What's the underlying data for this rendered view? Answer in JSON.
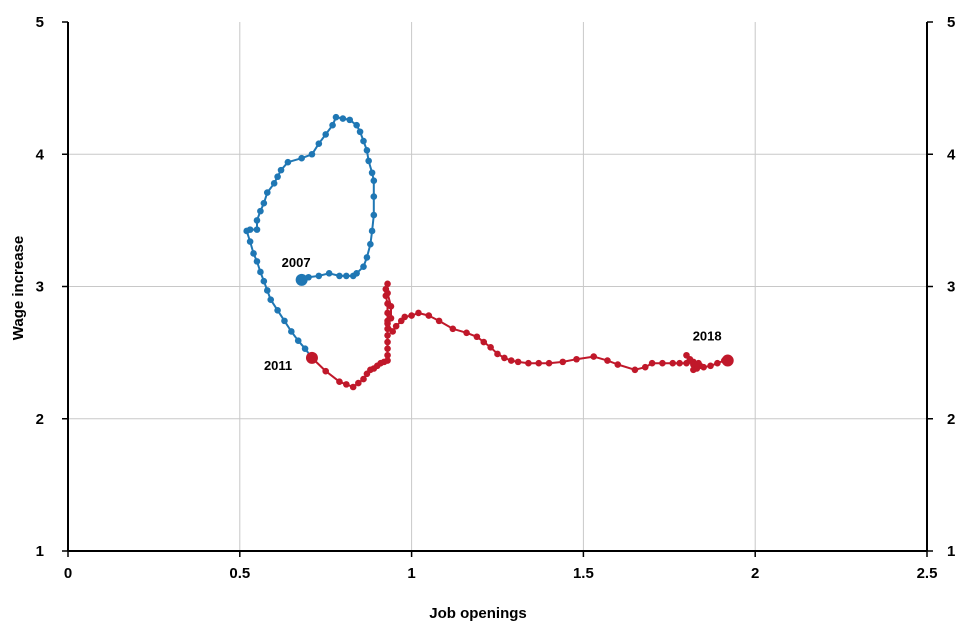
{
  "chart_data": {
    "type": "line",
    "xlabel": "Job openings",
    "ylabel": "Wage increase",
    "xlim": [
      0,
      2.5
    ],
    "ylim": [
      1,
      5
    ],
    "x_ticks": [
      "0",
      "0.5",
      "1",
      "1.5",
      "2",
      "2.5"
    ],
    "y_ticks": [
      "1",
      "2",
      "3",
      "4",
      "5"
    ],
    "y_ticks_right": [
      "1",
      "2",
      "3",
      "4",
      "5"
    ],
    "grid": true,
    "legend": "none",
    "series": [
      {
        "color": "#1f77b4",
        "points": [
          [
            0.68,
            3.05
          ],
          [
            0.7,
            3.07
          ],
          [
            0.73,
            3.08
          ],
          [
            0.76,
            3.1
          ],
          [
            0.79,
            3.08
          ],
          [
            0.81,
            3.08
          ],
          [
            0.83,
            3.08
          ],
          [
            0.84,
            3.1
          ],
          [
            0.86,
            3.15
          ],
          [
            0.87,
            3.22
          ],
          [
            0.88,
            3.32
          ],
          [
            0.885,
            3.42
          ],
          [
            0.89,
            3.54
          ],
          [
            0.89,
            3.68
          ],
          [
            0.89,
            3.8
          ],
          [
            0.885,
            3.86
          ],
          [
            0.875,
            3.95
          ],
          [
            0.87,
            4.03
          ],
          [
            0.86,
            4.1
          ],
          [
            0.85,
            4.17
          ],
          [
            0.84,
            4.22
          ],
          [
            0.82,
            4.26
          ],
          [
            0.8,
            4.27
          ],
          [
            0.78,
            4.28
          ],
          [
            0.77,
            4.22
          ],
          [
            0.75,
            4.15
          ],
          [
            0.73,
            4.08
          ],
          [
            0.71,
            4.0
          ],
          [
            0.68,
            3.97
          ],
          [
            0.64,
            3.94
          ],
          [
            0.62,
            3.88
          ],
          [
            0.61,
            3.83
          ],
          [
            0.6,
            3.78
          ],
          [
            0.58,
            3.71
          ],
          [
            0.57,
            3.63
          ],
          [
            0.56,
            3.57
          ],
          [
            0.55,
            3.5
          ],
          [
            0.55,
            3.43
          ],
          [
            0.53,
            3.43
          ],
          [
            0.52,
            3.42
          ],
          [
            0.53,
            3.34
          ],
          [
            0.54,
            3.25
          ],
          [
            0.55,
            3.19
          ],
          [
            0.56,
            3.11
          ],
          [
            0.57,
            3.04
          ],
          [
            0.58,
            2.97
          ],
          [
            0.59,
            2.9
          ],
          [
            0.61,
            2.82
          ],
          [
            0.63,
            2.74
          ],
          [
            0.65,
            2.66
          ],
          [
            0.67,
            2.59
          ],
          [
            0.69,
            2.53
          ],
          [
            0.71,
            2.46
          ]
        ]
      },
      {
        "color": "#c0182a",
        "points": [
          [
            0.71,
            2.46
          ],
          [
            0.75,
            2.36
          ],
          [
            0.79,
            2.28
          ],
          [
            0.81,
            2.26
          ],
          [
            0.83,
            2.24
          ],
          [
            0.845,
            2.27
          ],
          [
            0.86,
            2.3
          ],
          [
            0.87,
            2.34
          ],
          [
            0.88,
            2.37
          ],
          [
            0.89,
            2.38
          ],
          [
            0.9,
            2.4
          ],
          [
            0.91,
            2.42
          ],
          [
            0.92,
            2.43
          ],
          [
            0.93,
            2.44
          ],
          [
            0.93,
            2.48
          ],
          [
            0.93,
            2.53
          ],
          [
            0.93,
            2.58
          ],
          [
            0.93,
            2.63
          ],
          [
            0.93,
            2.68
          ],
          [
            0.93,
            2.74
          ],
          [
            0.93,
            2.8
          ],
          [
            0.93,
            2.87
          ],
          [
            0.925,
            2.93
          ],
          [
            0.925,
            2.98
          ],
          [
            0.93,
            3.02
          ],
          [
            0.93,
            2.95
          ],
          [
            0.94,
            2.85
          ],
          [
            0.94,
            2.76
          ],
          [
            0.93,
            2.72
          ],
          [
            0.945,
            2.66
          ],
          [
            0.955,
            2.7
          ],
          [
            0.97,
            2.74
          ],
          [
            0.98,
            2.77
          ],
          [
            1.0,
            2.78
          ],
          [
            1.02,
            2.8
          ],
          [
            1.05,
            2.78
          ],
          [
            1.08,
            2.74
          ],
          [
            1.12,
            2.68
          ],
          [
            1.16,
            2.65
          ],
          [
            1.19,
            2.62
          ],
          [
            1.21,
            2.58
          ],
          [
            1.23,
            2.54
          ],
          [
            1.25,
            2.49
          ],
          [
            1.27,
            2.46
          ],
          [
            1.29,
            2.44
          ],
          [
            1.31,
            2.43
          ],
          [
            1.34,
            2.42
          ],
          [
            1.37,
            2.42
          ],
          [
            1.4,
            2.42
          ],
          [
            1.44,
            2.43
          ],
          [
            1.48,
            2.45
          ],
          [
            1.53,
            2.47
          ],
          [
            1.57,
            2.44
          ],
          [
            1.6,
            2.41
          ],
          [
            1.65,
            2.37
          ],
          [
            1.68,
            2.39
          ],
          [
            1.7,
            2.42
          ],
          [
            1.73,
            2.42
          ],
          [
            1.76,
            2.42
          ],
          [
            1.78,
            2.42
          ],
          [
            1.8,
            2.42
          ],
          [
            1.82,
            2.43
          ],
          [
            1.835,
            2.42
          ],
          [
            1.84,
            2.4
          ],
          [
            1.83,
            2.38
          ],
          [
            1.82,
            2.37
          ],
          [
            1.82,
            2.41
          ],
          [
            1.81,
            2.44
          ],
          [
            1.8,
            2.48
          ],
          [
            1.81,
            2.45
          ],
          [
            1.83,
            2.41
          ],
          [
            1.85,
            2.39
          ],
          [
            1.87,
            2.4
          ],
          [
            1.89,
            2.42
          ],
          [
            1.91,
            2.44
          ],
          [
            1.92,
            2.44
          ]
        ]
      }
    ],
    "highlights": [
      {
        "x": 0.68,
        "y": 3.05,
        "color": "#1f77b4"
      },
      {
        "x": 0.71,
        "y": 2.46,
        "color": "#c0182a"
      },
      {
        "x": 1.92,
        "y": 2.44,
        "color": "#c0182a"
      }
    ],
    "annotations": [
      {
        "text": "2007",
        "x": 0.68,
        "y": 3.05
      },
      {
        "text": "2011",
        "x": 0.71,
        "y": 2.46
      },
      {
        "text": "2018",
        "x": 1.92,
        "y": 2.44
      }
    ]
  }
}
